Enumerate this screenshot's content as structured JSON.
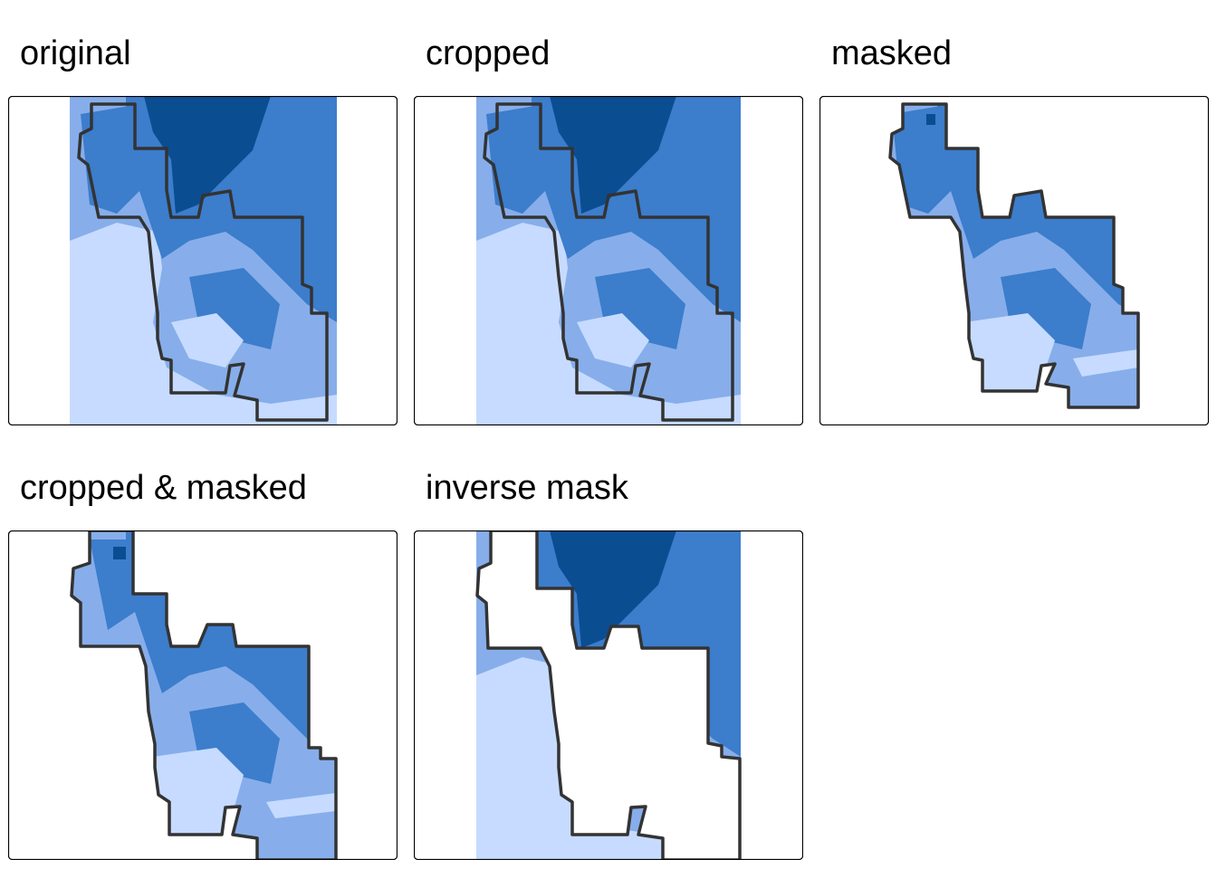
{
  "panels": [
    {
      "id": "original",
      "title": "original"
    },
    {
      "id": "cropped",
      "title": "cropped"
    },
    {
      "id": "masked",
      "title": "masked"
    },
    {
      "id": "cropped_masked",
      "title": "cropped & masked"
    },
    {
      "id": "inverse_mask",
      "title": "inverse mask"
    }
  ],
  "colors": {
    "level1": "#c6dbff",
    "level2": "#87aeea",
    "level3": "#3c7dcc",
    "level4": "#0b4d91",
    "outline": "#333333",
    "frame": "#000000",
    "background": "#ffffff"
  }
}
